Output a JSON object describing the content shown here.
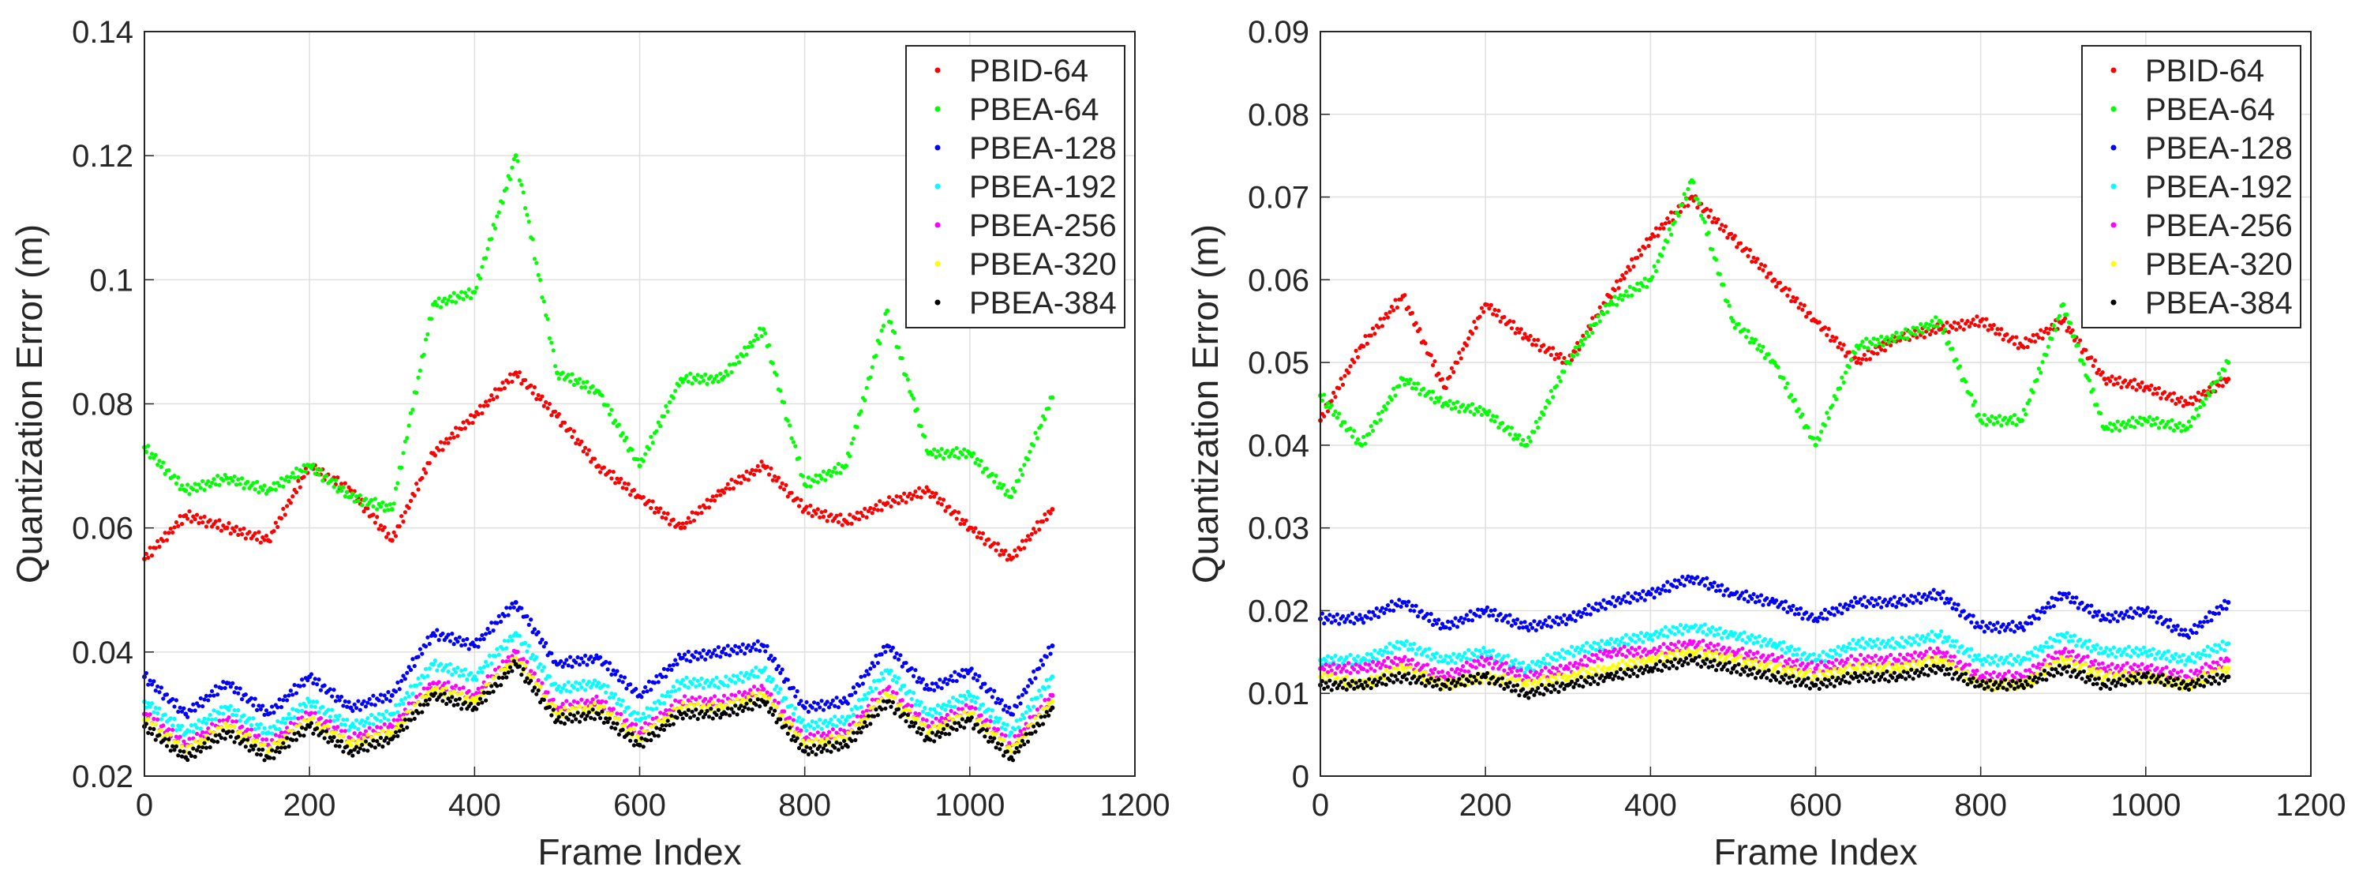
{
  "chart_data": [
    {
      "type": "scatter",
      "title": "",
      "xlabel": "Frame Index",
      "ylabel": "Quantization Error (m)",
      "xlim": [
        0,
        1200
      ],
      "ylim": [
        0.02,
        0.14
      ],
      "xticks": [
        0,
        200,
        400,
        600,
        800,
        1000,
        1200
      ],
      "xtick_labels": [
        "0",
        "200",
        "400",
        "600",
        "800",
        "1000",
        "1200"
      ],
      "yticks": [
        0.02,
        0.04,
        0.06,
        0.08,
        0.1,
        0.12,
        0.14
      ],
      "ytick_labels": [
        "0.02",
        "0.04",
        "0.06",
        "0.08",
        "0.1",
        "0.12",
        "0.14"
      ],
      "grid": true,
      "legend_position": "top-right",
      "series": [
        {
          "name": "PBID-64",
          "color": "#ff0000",
          "x": [
            0,
            50,
            100,
            150,
            200,
            250,
            300,
            350,
            400,
            450,
            500,
            550,
            600,
            650,
            700,
            750,
            800,
            850,
            900,
            950,
            1000,
            1050,
            1100
          ],
          "values": [
            0.055,
            0.062,
            0.06,
            0.058,
            0.07,
            0.066,
            0.058,
            0.072,
            0.078,
            0.085,
            0.078,
            0.07,
            0.065,
            0.06,
            0.066,
            0.07,
            0.063,
            0.061,
            0.064,
            0.066,
            0.06,
            0.055,
            0.063
          ]
        },
        {
          "name": "PBEA-64",
          "color": "#00ff00",
          "x": [
            0,
            50,
            100,
            150,
            200,
            250,
            300,
            350,
            400,
            450,
            500,
            550,
            600,
            650,
            700,
            750,
            800,
            850,
            900,
            950,
            1000,
            1050,
            1100
          ],
          "values": [
            0.073,
            0.066,
            0.068,
            0.066,
            0.07,
            0.065,
            0.063,
            0.096,
            0.098,
            0.12,
            0.085,
            0.082,
            0.07,
            0.084,
            0.084,
            0.092,
            0.067,
            0.07,
            0.095,
            0.072,
            0.072,
            0.065,
            0.081
          ]
        },
        {
          "name": "PBEA-128",
          "color": "#0000ff",
          "x": [
            0,
            50,
            100,
            150,
            200,
            250,
            300,
            350,
            400,
            450,
            500,
            550,
            600,
            650,
            700,
            750,
            800,
            850,
            900,
            950,
            1000,
            1050,
            1100
          ],
          "values": [
            0.036,
            0.03,
            0.035,
            0.03,
            0.036,
            0.031,
            0.033,
            0.043,
            0.041,
            0.048,
            0.038,
            0.039,
            0.033,
            0.039,
            0.04,
            0.041,
            0.031,
            0.032,
            0.041,
            0.034,
            0.037,
            0.03,
            0.041
          ]
        },
        {
          "name": "PBEA-192",
          "color": "#00ffff",
          "x": [
            0,
            50,
            100,
            150,
            200,
            250,
            300,
            350,
            400,
            450,
            500,
            550,
            600,
            650,
            700,
            750,
            800,
            850,
            900,
            950,
            1000,
            1050,
            1100
          ],
          "values": [
            0.032,
            0.027,
            0.031,
            0.027,
            0.032,
            0.028,
            0.03,
            0.038,
            0.036,
            0.043,
            0.034,
            0.035,
            0.029,
            0.035,
            0.035,
            0.037,
            0.028,
            0.029,
            0.037,
            0.03,
            0.033,
            0.027,
            0.036
          ]
        },
        {
          "name": "PBEA-256",
          "color": "#ff00ff",
          "x": [
            0,
            50,
            100,
            150,
            200,
            250,
            300,
            350,
            400,
            450,
            500,
            550,
            600,
            650,
            700,
            750,
            800,
            850,
            900,
            950,
            1000,
            1050,
            1100
          ],
          "values": [
            0.03,
            0.025,
            0.029,
            0.025,
            0.03,
            0.026,
            0.028,
            0.035,
            0.033,
            0.04,
            0.031,
            0.032,
            0.027,
            0.032,
            0.032,
            0.034,
            0.026,
            0.027,
            0.034,
            0.028,
            0.031,
            0.025,
            0.033
          ]
        },
        {
          "name": "PBEA-320",
          "color": "#ffff00",
          "x": [
            0,
            50,
            100,
            150,
            200,
            250,
            300,
            350,
            400,
            450,
            500,
            550,
            600,
            650,
            700,
            750,
            800,
            850,
            900,
            950,
            1000,
            1050,
            1100
          ],
          "values": [
            0.029,
            0.024,
            0.028,
            0.024,
            0.029,
            0.025,
            0.027,
            0.034,
            0.032,
            0.039,
            0.03,
            0.031,
            0.026,
            0.031,
            0.031,
            0.033,
            0.025,
            0.026,
            0.033,
            0.027,
            0.03,
            0.024,
            0.032
          ]
        },
        {
          "name": "PBEA-384",
          "color": "#000000",
          "x": [
            0,
            50,
            100,
            150,
            200,
            250,
            300,
            350,
            400,
            450,
            500,
            550,
            600,
            650,
            700,
            750,
            800,
            850,
            900,
            950,
            1000,
            1050,
            1100
          ],
          "values": [
            0.028,
            0.023,
            0.027,
            0.023,
            0.028,
            0.024,
            0.026,
            0.033,
            0.031,
            0.038,
            0.029,
            0.03,
            0.025,
            0.03,
            0.03,
            0.032,
            0.024,
            0.025,
            0.032,
            0.026,
            0.029,
            0.023,
            0.031
          ]
        }
      ]
    },
    {
      "type": "scatter",
      "title": "",
      "xlabel": "Frame Index",
      "ylabel": "Quantization Error (m)",
      "xlim": [
        0,
        1200
      ],
      "ylim": [
        0,
        0.09
      ],
      "xticks": [
        0,
        200,
        400,
        600,
        800,
        1000,
        1200
      ],
      "xtick_labels": [
        "0",
        "200",
        "400",
        "600",
        "800",
        "1000",
        "1200"
      ],
      "yticks": [
        0,
        0.01,
        0.02,
        0.03,
        0.04,
        0.05,
        0.06,
        0.07,
        0.08,
        0.09
      ],
      "ytick_labels": [
        "0",
        "0.01",
        "0.02",
        "0.03",
        "0.04",
        "0.05",
        "0.06",
        "0.07",
        "0.08",
        "0.09"
      ],
      "grid": true,
      "legend_position": "top-right",
      "series": [
        {
          "name": "PBID-64",
          "color": "#ff0000",
          "x": [
            0,
            50,
            100,
            150,
            200,
            250,
            300,
            350,
            400,
            450,
            500,
            550,
            600,
            650,
            700,
            750,
            800,
            850,
            900,
            950,
            1000,
            1050,
            1100
          ],
          "values": [
            0.043,
            0.052,
            0.058,
            0.047,
            0.057,
            0.053,
            0.05,
            0.058,
            0.065,
            0.07,
            0.065,
            0.06,
            0.055,
            0.05,
            0.053,
            0.054,
            0.055,
            0.052,
            0.055,
            0.048,
            0.047,
            0.045,
            0.048
          ]
        },
        {
          "name": "PBEA-64",
          "color": "#00ff00",
          "x": [
            0,
            50,
            100,
            150,
            200,
            250,
            300,
            350,
            400,
            450,
            500,
            550,
            600,
            650,
            700,
            750,
            800,
            850,
            900,
            950,
            1000,
            1050,
            1100
          ],
          "values": [
            0.046,
            0.04,
            0.048,
            0.045,
            0.044,
            0.04,
            0.05,
            0.057,
            0.06,
            0.072,
            0.055,
            0.05,
            0.04,
            0.052,
            0.053,
            0.055,
            0.043,
            0.043,
            0.057,
            0.042,
            0.043,
            0.042,
            0.05
          ]
        },
        {
          "name": "PBEA-128",
          "color": "#0000ff",
          "x": [
            0,
            50,
            100,
            150,
            200,
            250,
            300,
            350,
            400,
            450,
            500,
            550,
            600,
            650,
            700,
            750,
            800,
            850,
            900,
            950,
            1000,
            1050,
            1100
          ],
          "values": [
            0.019,
            0.019,
            0.021,
            0.018,
            0.02,
            0.018,
            0.019,
            0.021,
            0.022,
            0.024,
            0.022,
            0.021,
            0.019,
            0.021,
            0.021,
            0.022,
            0.018,
            0.018,
            0.022,
            0.019,
            0.02,
            0.017,
            0.021
          ]
        },
        {
          "name": "PBEA-192",
          "color": "#00ffff",
          "x": [
            0,
            50,
            100,
            150,
            200,
            250,
            300,
            350,
            400,
            450,
            500,
            550,
            600,
            650,
            700,
            750,
            800,
            850,
            900,
            950,
            1000,
            1050,
            1100
          ],
          "values": [
            0.014,
            0.014,
            0.016,
            0.014,
            0.015,
            0.013,
            0.015,
            0.016,
            0.017,
            0.018,
            0.017,
            0.016,
            0.014,
            0.016,
            0.016,
            0.017,
            0.014,
            0.014,
            0.017,
            0.015,
            0.015,
            0.014,
            0.016
          ]
        },
        {
          "name": "PBEA-256",
          "color": "#ff00ff",
          "x": [
            0,
            50,
            100,
            150,
            200,
            250,
            300,
            350,
            400,
            450,
            500,
            550,
            600,
            650,
            700,
            750,
            800,
            850,
            900,
            950,
            1000,
            1050,
            1100
          ],
          "values": [
            0.013,
            0.013,
            0.014,
            0.012,
            0.014,
            0.012,
            0.013,
            0.015,
            0.015,
            0.016,
            0.015,
            0.014,
            0.013,
            0.014,
            0.014,
            0.015,
            0.012,
            0.012,
            0.015,
            0.013,
            0.013,
            0.012,
            0.014
          ]
        },
        {
          "name": "PBEA-320",
          "color": "#ffff00",
          "x": [
            0,
            50,
            100,
            150,
            200,
            250,
            300,
            350,
            400,
            450,
            500,
            550,
            600,
            650,
            700,
            750,
            800,
            850,
            900,
            950,
            1000,
            1050,
            1100
          ],
          "values": [
            0.012,
            0.011,
            0.013,
            0.011,
            0.012,
            0.011,
            0.012,
            0.013,
            0.014,
            0.015,
            0.014,
            0.013,
            0.012,
            0.013,
            0.013,
            0.014,
            0.011,
            0.011,
            0.014,
            0.012,
            0.012,
            0.011,
            0.013
          ]
        },
        {
          "name": "PBEA-384",
          "color": "#000000",
          "x": [
            0,
            50,
            100,
            150,
            200,
            250,
            300,
            350,
            400,
            450,
            500,
            550,
            600,
            650,
            700,
            750,
            800,
            850,
            900,
            950,
            1000,
            1050,
            1100
          ],
          "values": [
            0.011,
            0.011,
            0.012,
            0.011,
            0.012,
            0.01,
            0.011,
            0.012,
            0.013,
            0.014,
            0.013,
            0.012,
            0.011,
            0.012,
            0.012,
            0.013,
            0.011,
            0.011,
            0.013,
            0.011,
            0.012,
            0.011,
            0.012
          ]
        }
      ]
    }
  ]
}
